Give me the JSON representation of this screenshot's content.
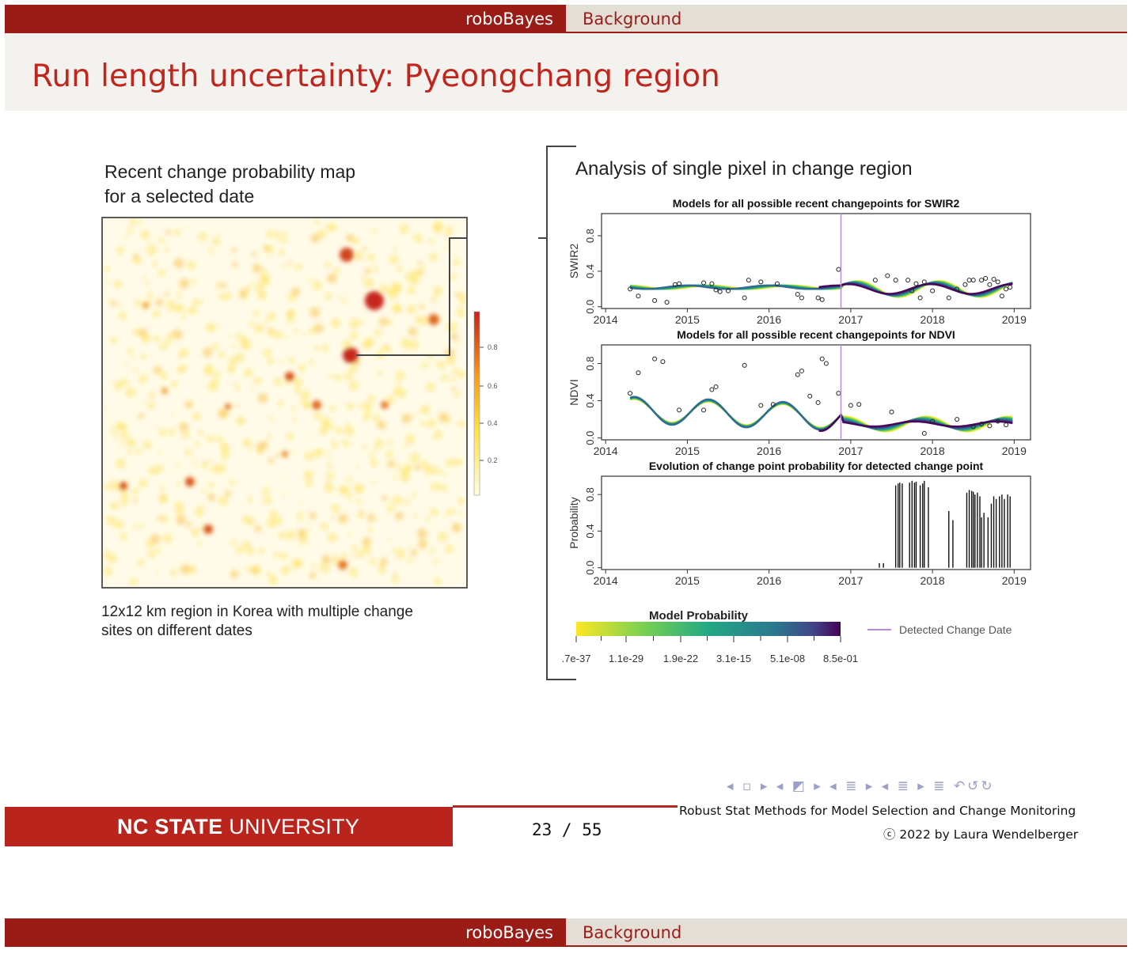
{
  "header": {
    "left": "roboBayes",
    "right": "Background"
  },
  "slide": {
    "title": "Run length uncertainty: Pyeongchang region",
    "map": {
      "title_line1": "Recent change probability map",
      "title_line2": "for a selected date",
      "caption_line1": "12x12 km region in Korea with multiple change",
      "caption_line2": "sites on different dates",
      "colorbar_ticks": [
        "0.8",
        "0.6",
        "0.4",
        "0.2"
      ]
    },
    "analysis": {
      "title": "Analysis of single pixel in change region",
      "legend_title": "Model Probability",
      "legend_ticks": [
        ".7e-37",
        "1.1e-29",
        "1.9e-22",
        "3.1e-15",
        "5.1e-08",
        "8.5e-01"
      ],
      "legend_line": "Detected Change Date"
    }
  },
  "chart_data": [
    {
      "type": "line",
      "title": "Models for all possible recent changepoints for SWIR2",
      "ylabel": "SWIR2",
      "x_ticks": [
        "2014",
        "2015",
        "2016",
        "2017",
        "2018",
        "2019"
      ],
      "y_ticks": [
        "0.0",
        "0.4",
        "0.8"
      ],
      "xlim": [
        2013.95,
        2019.2
      ],
      "ylim": [
        -0.02,
        1.05
      ],
      "change_date": 2016.88,
      "points": [
        [
          2014.3,
          0.2
        ],
        [
          2014.4,
          0.12
        ],
        [
          2014.6,
          0.07
        ],
        [
          2014.75,
          0.05
        ],
        [
          2014.85,
          0.25
        ],
        [
          2014.9,
          0.26
        ],
        [
          2015.2,
          0.27
        ],
        [
          2015.3,
          0.26
        ],
        [
          2015.35,
          0.19
        ],
        [
          2015.4,
          0.17
        ],
        [
          2015.5,
          0.18
        ],
        [
          2015.7,
          0.1
        ],
        [
          2015.75,
          0.3
        ],
        [
          2015.9,
          0.28
        ],
        [
          2016.1,
          0.26
        ],
        [
          2016.35,
          0.14
        ],
        [
          2016.4,
          0.1
        ],
        [
          2016.6,
          0.1
        ],
        [
          2016.65,
          0.08
        ],
        [
          2016.85,
          0.42
        ],
        [
          2017.3,
          0.3
        ],
        [
          2017.45,
          0.35
        ],
        [
          2017.55,
          0.3
        ],
        [
          2017.7,
          0.3
        ],
        [
          2017.75,
          0.18
        ],
        [
          2017.8,
          0.26
        ],
        [
          2017.85,
          0.1
        ],
        [
          2017.9,
          0.28
        ],
        [
          2018.0,
          0.18
        ],
        [
          2018.2,
          0.1
        ],
        [
          2018.3,
          0.2
        ],
        [
          2018.4,
          0.25
        ],
        [
          2018.45,
          0.3
        ],
        [
          2018.5,
          0.3
        ],
        [
          2018.6,
          0.3
        ],
        [
          2018.65,
          0.32
        ],
        [
          2018.7,
          0.25
        ],
        [
          2018.75,
          0.31
        ],
        [
          2018.8,
          0.28
        ],
        [
          2018.85,
          0.12
        ],
        [
          2018.9,
          0.2
        ],
        [
          2018.95,
          0.22
        ]
      ]
    },
    {
      "type": "line",
      "title": "Models for all possible recent changepoints for NDVI",
      "ylabel": "NDVI",
      "x_ticks": [
        "2014",
        "2015",
        "2016",
        "2017",
        "2018",
        "2019"
      ],
      "y_ticks": [
        "0.0",
        "0.4",
        "0.8"
      ],
      "xlim": [
        2013.95,
        2019.2
      ],
      "ylim": [
        -0.02,
        1.0
      ],
      "change_date": 2016.88,
      "points": [
        [
          2014.3,
          0.48
        ],
        [
          2014.4,
          0.7
        ],
        [
          2014.6,
          0.85
        ],
        [
          2014.7,
          0.82
        ],
        [
          2014.9,
          0.3
        ],
        [
          2015.2,
          0.3
        ],
        [
          2015.3,
          0.52
        ],
        [
          2015.35,
          0.55
        ],
        [
          2015.7,
          0.78
        ],
        [
          2015.9,
          0.35
        ],
        [
          2016.05,
          0.36
        ],
        [
          2016.35,
          0.68
        ],
        [
          2016.4,
          0.72
        ],
        [
          2016.5,
          0.45
        ],
        [
          2016.6,
          0.38
        ],
        [
          2016.65,
          0.85
        ],
        [
          2016.7,
          0.8
        ],
        [
          2016.85,
          0.48
        ],
        [
          2017.0,
          0.35
        ],
        [
          2017.1,
          0.36
        ],
        [
          2017.5,
          0.28
        ],
        [
          2017.9,
          0.05
        ],
        [
          2018.0,
          0.18
        ],
        [
          2018.3,
          0.2
        ],
        [
          2018.5,
          0.12
        ],
        [
          2018.6,
          0.15
        ],
        [
          2018.7,
          0.13
        ],
        [
          2018.8,
          0.18
        ],
        [
          2018.9,
          0.14
        ]
      ]
    },
    {
      "type": "bar",
      "title": "Evolution of change point probability for detected change point",
      "ylabel": "Probability",
      "x_ticks": [
        "2014",
        "2015",
        "2016",
        "2017",
        "2018",
        "2019"
      ],
      "y_ticks": [
        "0.0",
        "0.4",
        "0.8"
      ],
      "xlim": [
        2013.95,
        2019.2
      ],
      "ylim": [
        -0.02,
        1.0
      ],
      "bars": [
        [
          2017.35,
          0.05
        ],
        [
          2017.4,
          0.05
        ],
        [
          2017.55,
          0.9
        ],
        [
          2017.58,
          0.92
        ],
        [
          2017.6,
          0.93
        ],
        [
          2017.63,
          0.92
        ],
        [
          2017.72,
          0.93
        ],
        [
          2017.75,
          0.95
        ],
        [
          2017.78,
          0.93
        ],
        [
          2017.8,
          0.94
        ],
        [
          2017.85,
          0.9
        ],
        [
          2017.88,
          0.92
        ],
        [
          2017.9,
          0.95
        ],
        [
          2017.95,
          0.88
        ],
        [
          2018.2,
          0.62
        ],
        [
          2018.25,
          0.52
        ],
        [
          2018.42,
          0.82
        ],
        [
          2018.45,
          0.85
        ],
        [
          2018.48,
          0.84
        ],
        [
          2018.5,
          0.83
        ],
        [
          2018.52,
          0.8
        ],
        [
          2018.55,
          0.82
        ],
        [
          2018.58,
          0.78
        ],
        [
          2018.6,
          0.55
        ],
        [
          2018.63,
          0.6
        ],
        [
          2018.68,
          0.55
        ],
        [
          2018.72,
          0.7
        ],
        [
          2018.75,
          0.78
        ],
        [
          2018.78,
          0.75
        ],
        [
          2018.82,
          0.78
        ],
        [
          2018.85,
          0.8
        ],
        [
          2018.88,
          0.75
        ],
        [
          2018.92,
          0.8
        ],
        [
          2018.95,
          0.78
        ]
      ]
    }
  ],
  "nav": {
    "symbols": "◂ ▫ ▸ ◂ ◩ ▸ ◂ ≣ ▸ ◂ ≣ ▸ ≣ ↶↺↻"
  },
  "footer": {
    "logo_bold": "NC STATE",
    "logo_light": " UNIVERSITY",
    "page": "23 / 55",
    "title": "Robust Stat Methods for Model Selection and Change Monitoring",
    "copyright": "ⓒ 2022 by Laura Wendelberger"
  },
  "header2": {
    "left": "roboBayes",
    "right": "Background"
  },
  "colors": {
    "brand_red": "#9b1c17",
    "title_red": "#c0261e",
    "footer_red": "#b9251d",
    "header_grey": "#e3dfd6"
  }
}
